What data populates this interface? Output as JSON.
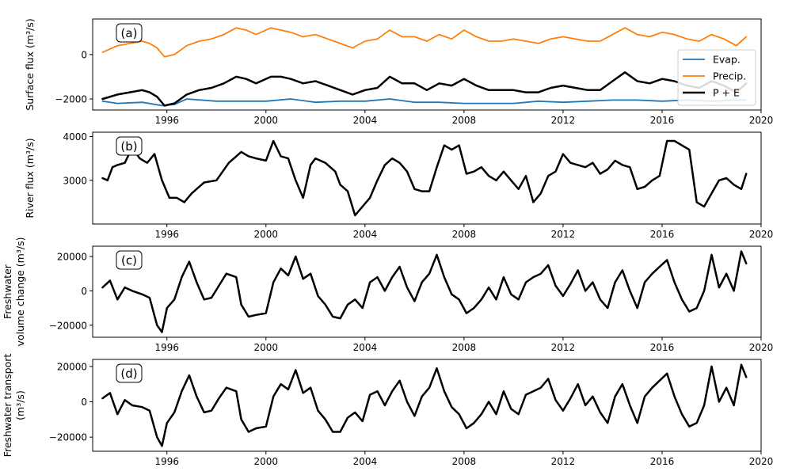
{
  "figure": {
    "panels": [
      {
        "id": "a",
        "tag": "(a)",
        "ylabel_lines": [
          "Surface flux (m³/s)"
        ],
        "yticks": [
          {
            "v": 0,
            "label": "0"
          },
          {
            "v": -2000,
            "label": "−2000"
          }
        ],
        "xticks": [
          "1996",
          "2000",
          "2004",
          "2008",
          "2012",
          "2016",
          "2020"
        ]
      },
      {
        "id": "b",
        "tag": "(b)",
        "ylabel_lines": [
          "River flux (m³/s)"
        ],
        "yticks": [
          {
            "v": 4000,
            "label": "4000"
          },
          {
            "v": 3000,
            "label": "3000"
          }
        ],
        "xticks": [
          "1996",
          "2000",
          "2004",
          "2008",
          "2012",
          "2016",
          "2020"
        ]
      },
      {
        "id": "c",
        "tag": "(c)",
        "ylabel_lines": [
          "Freshwater",
          "volume change (m³/s)"
        ],
        "yticks": [
          {
            "v": 20000,
            "label": "20000"
          },
          {
            "v": 0,
            "label": "0"
          },
          {
            "v": -20000,
            "label": "−20000"
          }
        ],
        "xticks": [
          "1996",
          "2000",
          "2004",
          "2008",
          "2012",
          "2016",
          "2020"
        ]
      },
      {
        "id": "d",
        "tag": "(d)",
        "ylabel_lines": [
          "Freshwater transport",
          "(m³/s)"
        ],
        "yticks": [
          {
            "v": 20000,
            "label": "20000"
          },
          {
            "v": 0,
            "label": "0"
          },
          {
            "v": -20000,
            "label": "−20000"
          }
        ],
        "xticks": [
          "1996",
          "2000",
          "2004",
          "2008",
          "2012",
          "2016",
          "2020"
        ]
      }
    ],
    "legend": {
      "location": "lower-right of panel (a)",
      "entries": [
        {
          "label": "Evap.",
          "color": "#1f77b4"
        },
        {
          "label": "Precip.",
          "color": "#ff7f0e"
        },
        {
          "label": "P + E",
          "color": "#000000"
        }
      ]
    }
  },
  "chart_data": [
    {
      "panel": "a",
      "type": "line",
      "ylabel": "Surface flux (m³/s)",
      "xlim": [
        1993.0,
        2020.0
      ],
      "ylim": [
        -2500,
        1600
      ],
      "grid": false,
      "legend": "lower-right",
      "series": [
        {
          "name": "Precip.",
          "color": "#ff7f0e",
          "width": 1.8,
          "x": [
            1993.4,
            1994.0,
            1994.5,
            1995.0,
            1995.3,
            1995.6,
            1995.9,
            1996.3,
            1996.8,
            1997.3,
            1997.8,
            1998.3,
            1998.8,
            1999.2,
            1999.6,
            2000.2,
            2000.6,
            2001.0,
            2001.5,
            2002.0,
            2002.5,
            2003.0,
            2003.5,
            2004.0,
            2004.5,
            2005.0,
            2005.5,
            2006.0,
            2006.5,
            2007.0,
            2007.5,
            2008.0,
            2008.5,
            2009.0,
            2009.5,
            2010.0,
            2010.5,
            2011.0,
            2011.5,
            2012.0,
            2012.5,
            2013.0,
            2013.5,
            2014.0,
            2014.5,
            2015.0,
            2015.5,
            2016.0,
            2016.5,
            2017.0,
            2017.5,
            2018.0,
            2018.5,
            2019.0,
            2019.4
          ],
          "y": [
            100,
            400,
            500,
            600,
            500,
            300,
            -100,
            0,
            400,
            600,
            700,
            900,
            1200,
            1100,
            900,
            1200,
            1100,
            1000,
            800,
            900,
            700,
            500,
            300,
            600,
            700,
            1100,
            800,
            800,
            600,
            900,
            700,
            1100,
            800,
            600,
            600,
            700,
            600,
            500,
            700,
            800,
            700,
            600,
            600,
            900,
            1200,
            900,
            800,
            1000,
            900,
            700,
            600,
            900,
            700,
            400,
            800
          ]
        },
        {
          "name": "Evap.",
          "color": "#1f77b4",
          "width": 1.8,
          "x": [
            1993.4,
            1994.0,
            1995.0,
            1995.8,
            1996.3,
            1996.8,
            1998.0,
            1999.0,
            2000.0,
            2001.0,
            2002.0,
            2003.0,
            2004.0,
            2005.0,
            2006.0,
            2007.0,
            2008.0,
            2009.0,
            2010.0,
            2011.0,
            2012.0,
            2013.0,
            2014.0,
            2015.0,
            2016.0,
            2017.0,
            2018.0,
            2019.0,
            2019.4
          ],
          "y": [
            -2100,
            -2200,
            -2150,
            -2300,
            -2250,
            -2000,
            -2100,
            -2100,
            -2100,
            -2000,
            -2150,
            -2100,
            -2100,
            -2000,
            -2150,
            -2150,
            -2200,
            -2200,
            -2200,
            -2100,
            -2150,
            -2100,
            -2050,
            -2050,
            -2100,
            -2050,
            -2100,
            -2050,
            -2050
          ]
        },
        {
          "name": "P + E",
          "color": "#000000",
          "width": 2.5,
          "x": [
            1993.4,
            1994.0,
            1994.5,
            1995.0,
            1995.3,
            1995.6,
            1995.9,
            1996.3,
            1996.8,
            1997.3,
            1997.8,
            1998.3,
            1998.8,
            1999.2,
            1999.6,
            2000.2,
            2000.6,
            2001.0,
            2001.5,
            2002.0,
            2002.5,
            2003.0,
            2003.5,
            2004.0,
            2004.5,
            2005.0,
            2005.5,
            2006.0,
            2006.5,
            2007.0,
            2007.5,
            2008.0,
            2008.5,
            2009.0,
            2009.5,
            2010.0,
            2010.5,
            2011.0,
            2011.5,
            2012.0,
            2012.5,
            2013.0,
            2013.5,
            2014.0,
            2014.5,
            2015.0,
            2015.5,
            2016.0,
            2016.5,
            2017.0,
            2017.5,
            2018.0,
            2018.5,
            2019.0,
            2019.4
          ],
          "y": [
            -2000,
            -1800,
            -1700,
            -1600,
            -1700,
            -1900,
            -2300,
            -2200,
            -1800,
            -1600,
            -1500,
            -1300,
            -1000,
            -1100,
            -1300,
            -1000,
            -1000,
            -1100,
            -1300,
            -1200,
            -1400,
            -1600,
            -1800,
            -1600,
            -1500,
            -1000,
            -1300,
            -1300,
            -1600,
            -1300,
            -1400,
            -1100,
            -1400,
            -1600,
            -1600,
            -1600,
            -1700,
            -1700,
            -1500,
            -1400,
            -1500,
            -1600,
            -1600,
            -1200,
            -800,
            -1200,
            -1300,
            -1100,
            -1200,
            -1400,
            -1500,
            -1200,
            -1400,
            -1700,
            -1300
          ]
        }
      ]
    },
    {
      "panel": "b",
      "type": "line",
      "ylabel": "River flux (m³/s)",
      "xlim": [
        1993.0,
        2020.0
      ],
      "ylim": [
        2000,
        4100
      ],
      "grid": false,
      "series": [
        {
          "color": "#000000",
          "width": 2.5,
          "x": [
            1993.4,
            1993.6,
            1993.8,
            1994.0,
            1994.3,
            1994.6,
            1994.9,
            1995.2,
            1995.5,
            1995.8,
            1996.1,
            1996.4,
            1996.7,
            1997.0,
            1997.5,
            1998.0,
            1998.5,
            1999.0,
            1999.3,
            1999.6,
            2000.0,
            2000.3,
            2000.6,
            2000.9,
            2001.2,
            2001.5,
            2001.8,
            2002.0,
            2002.4,
            2002.8,
            2003.0,
            2003.3,
            2003.6,
            2003.9,
            2004.2,
            2004.5,
            2004.8,
            2005.1,
            2005.4,
            2005.7,
            2006.0,
            2006.3,
            2006.6,
            2006.9,
            2007.2,
            2007.5,
            2007.8,
            2008.1,
            2008.4,
            2008.7,
            2009.0,
            2009.3,
            2009.6,
            2009.9,
            2010.2,
            2010.5,
            2010.8,
            2011.1,
            2011.4,
            2011.7,
            2012.0,
            2012.3,
            2012.6,
            2012.9,
            2013.2,
            2013.5,
            2013.8,
            2014.1,
            2014.4,
            2014.7,
            2015.0,
            2015.3,
            2015.6,
            2015.9,
            2016.2,
            2016.5,
            2016.8,
            2017.1,
            2017.4,
            2017.7,
            2018.0,
            2018.3,
            2018.6,
            2018.9,
            2019.2,
            2019.4
          ],
          "y": [
            3050,
            3000,
            3300,
            3350,
            3400,
            3750,
            3500,
            3400,
            3600,
            3000,
            2600,
            2600,
            2500,
            2700,
            2950,
            3000,
            3400,
            3650,
            3550,
            3500,
            3450,
            3900,
            3550,
            3500,
            3000,
            2600,
            3350,
            3500,
            3400,
            3200,
            2900,
            2750,
            2200,
            2400,
            2600,
            3000,
            3350,
            3500,
            3400,
            3200,
            2800,
            2750,
            2750,
            3300,
            3800,
            3700,
            3800,
            3150,
            3200,
            3300,
            3100,
            3000,
            3200,
            3000,
            2800,
            3100,
            2500,
            2700,
            3100,
            3200,
            3600,
            3400,
            3350,
            3300,
            3400,
            3150,
            3250,
            3450,
            3350,
            3300,
            2800,
            2850,
            3000,
            3100,
            3900,
            3900,
            3800,
            3700,
            2500,
            2400,
            2700,
            3000,
            3050,
            2900,
            2800,
            3150
          ]
        }
      ]
    },
    {
      "panel": "c",
      "type": "line",
      "ylabel": "Freshwater volume change (m³/s)",
      "xlim": [
        1993.0,
        2020.0
      ],
      "ylim": [
        -27000,
        26000
      ],
      "grid": false,
      "series": [
        {
          "color": "#000000",
          "width": 2.5,
          "x": [
            1993.4,
            1993.7,
            1994.0,
            1994.3,
            1994.6,
            1995.0,
            1995.3,
            1995.6,
            1995.8,
            1996.0,
            1996.3,
            1996.6,
            1996.9,
            1997.2,
            1997.5,
            1997.8,
            1998.1,
            1998.4,
            1998.8,
            1999.0,
            1999.3,
            1999.6,
            2000.0,
            2000.3,
            2000.6,
            2000.9,
            2001.2,
            2001.5,
            2001.8,
            2002.1,
            2002.4,
            2002.7,
            2003.0,
            2003.3,
            2003.6,
            2003.9,
            2004.2,
            2004.5,
            2004.8,
            2005.1,
            2005.4,
            2005.7,
            2006.0,
            2006.3,
            2006.6,
            2006.9,
            2007.2,
            2007.5,
            2007.8,
            2008.1,
            2008.4,
            2008.7,
            2009.0,
            2009.3,
            2009.6,
            2009.9,
            2010.2,
            2010.5,
            2010.8,
            2011.1,
            2011.4,
            2011.7,
            2012.0,
            2012.3,
            2012.6,
            2012.9,
            2013.2,
            2013.5,
            2013.8,
            2014.1,
            2014.4,
            2014.7,
            2015.0,
            2015.3,
            2015.6,
            2015.9,
            2016.2,
            2016.5,
            2016.8,
            2017.1,
            2017.4,
            2017.7,
            2018.0,
            2018.3,
            2018.6,
            2018.9,
            2019.2,
            2019.4
          ],
          "y": [
            2000,
            6000,
            -5000,
            2000,
            0,
            -2000,
            -4000,
            -20000,
            -24000,
            -10000,
            -5000,
            8000,
            17000,
            5000,
            -5000,
            -4000,
            3000,
            10000,
            8000,
            -8000,
            -15000,
            -14000,
            -13000,
            5000,
            13000,
            9000,
            20000,
            7000,
            10000,
            -3000,
            -8000,
            -15000,
            -16000,
            -8000,
            -5000,
            -10000,
            5000,
            8000,
            0,
            8000,
            14000,
            2000,
            -6000,
            5000,
            10000,
            21000,
            8000,
            -2000,
            -5000,
            -13000,
            -10000,
            -5000,
            2000,
            -5000,
            8000,
            -2000,
            -5000,
            5000,
            8000,
            10000,
            15000,
            3000,
            -3000,
            4000,
            12000,
            0,
            5000,
            -5000,
            -10000,
            5000,
            12000,
            0,
            -10000,
            5000,
            10000,
            14000,
            18000,
            5000,
            -5000,
            -12000,
            -10000,
            0,
            21000,
            2000,
            10000,
            0,
            23000,
            16000
          ]
        }
      ]
    },
    {
      "panel": "d",
      "type": "line",
      "ylabel": "Freshwater transport (m³/s)",
      "xlim": [
        1993.0,
        2020.0
      ],
      "ylim": [
        -28000,
        24000
      ],
      "grid": false,
      "series": [
        {
          "color": "#000000",
          "width": 2.5,
          "x": [
            1993.4,
            1993.7,
            1994.0,
            1994.3,
            1994.6,
            1995.0,
            1995.3,
            1995.6,
            1995.8,
            1996.0,
            1996.3,
            1996.6,
            1996.9,
            1997.2,
            1997.5,
            1997.8,
            1998.1,
            1998.4,
            1998.8,
            1999.0,
            1999.3,
            1999.6,
            2000.0,
            2000.3,
            2000.6,
            2000.9,
            2001.2,
            2001.5,
            2001.8,
            2002.1,
            2002.4,
            2002.7,
            2003.0,
            2003.3,
            2003.6,
            2003.9,
            2004.2,
            2004.5,
            2004.8,
            2005.1,
            2005.4,
            2005.7,
            2006.0,
            2006.3,
            2006.6,
            2006.9,
            2007.2,
            2007.5,
            2007.8,
            2008.1,
            2008.4,
            2008.7,
            2009.0,
            2009.3,
            2009.6,
            2009.9,
            2010.2,
            2010.5,
            2010.8,
            2011.1,
            2011.4,
            2011.7,
            2012.0,
            2012.3,
            2012.6,
            2012.9,
            2013.2,
            2013.5,
            2013.8,
            2014.1,
            2014.4,
            2014.7,
            2015.0,
            2015.3,
            2015.6,
            2015.9,
            2016.2,
            2016.5,
            2016.8,
            2017.1,
            2017.4,
            2017.7,
            2018.0,
            2018.3,
            2018.6,
            2018.9,
            2019.2,
            2019.4
          ],
          "y": [
            2000,
            5000,
            -7000,
            1000,
            -2000,
            -3000,
            -5000,
            -20000,
            -25000,
            -12000,
            -6000,
            6000,
            15000,
            3000,
            -6000,
            -5000,
            2000,
            8000,
            6000,
            -10000,
            -17000,
            -15000,
            -14000,
            3000,
            10000,
            7000,
            18000,
            5000,
            8000,
            -5000,
            -10000,
            -17000,
            -17000,
            -9000,
            -6000,
            -11000,
            4000,
            6000,
            -2000,
            6000,
            12000,
            0,
            -8000,
            3000,
            8000,
            19000,
            6000,
            -3000,
            -7000,
            -15000,
            -12000,
            -7000,
            0,
            -7000,
            6000,
            -4000,
            -7000,
            4000,
            6000,
            8000,
            13000,
            1000,
            -5000,
            2000,
            10000,
            -2000,
            3000,
            -6000,
            -12000,
            3000,
            10000,
            -2000,
            -12000,
            3000,
            8000,
            12000,
            16000,
            3000,
            -7000,
            -14000,
            -12000,
            -2000,
            20000,
            0,
            8000,
            -2000,
            21000,
            14000
          ]
        }
      ]
    }
  ]
}
